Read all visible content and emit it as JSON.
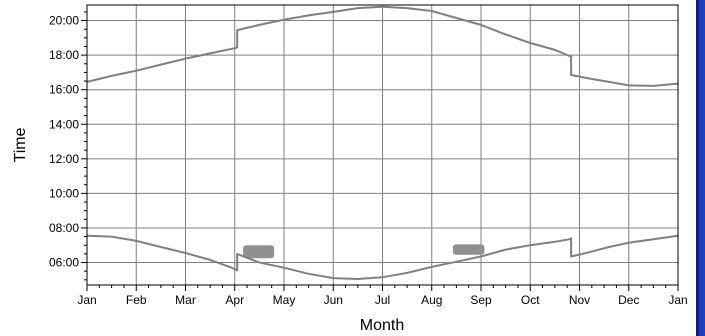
{
  "chart_data": {
    "type": "line",
    "xlabel": "Month",
    "ylabel": "Time",
    "x_tick_labels": [
      "Jan",
      "Feb",
      "Mar",
      "Apr",
      "May",
      "Jun",
      "Jul",
      "Aug",
      "Sep",
      "Oct",
      "Nov",
      "Dec",
      "Jan"
    ],
    "y_tick_labels": [
      "06:00",
      "08:00",
      "10:00",
      "12:00",
      "14:00",
      "16:00",
      "18:00",
      "20:00"
    ],
    "y_ticks_hours": [
      6,
      8,
      10,
      12,
      14,
      16,
      18,
      20
    ],
    "xlim_month": [
      0,
      12
    ],
    "ylim_hours": [
      4.7,
      20.9
    ],
    "grid": true,
    "line_color": "#808080",
    "series": [
      {
        "points": [
          [
            0.0,
            16.45
          ],
          [
            0.5,
            16.8
          ],
          [
            1.0,
            17.1
          ],
          [
            1.5,
            17.45
          ],
          [
            2.0,
            17.8
          ],
          [
            2.5,
            18.1
          ],
          [
            3.0,
            18.4
          ],
          [
            3.05,
            18.45
          ],
          [
            3.05,
            19.45
          ],
          [
            3.5,
            19.75
          ],
          [
            4.0,
            20.05
          ],
          [
            4.5,
            20.3
          ],
          [
            5.0,
            20.5
          ],
          [
            5.5,
            20.72
          ],
          [
            6.0,
            20.8
          ],
          [
            6.5,
            20.72
          ],
          [
            7.0,
            20.55
          ],
          [
            7.5,
            20.15
          ],
          [
            8.0,
            19.75
          ],
          [
            8.5,
            19.2
          ],
          [
            9.0,
            18.7
          ],
          [
            9.5,
            18.3
          ],
          [
            9.8,
            17.95
          ],
          [
            9.83,
            17.95
          ],
          [
            9.83,
            16.85
          ],
          [
            10.2,
            16.65
          ],
          [
            10.6,
            16.45
          ],
          [
            11.0,
            16.25
          ],
          [
            11.5,
            16.22
          ],
          [
            12.0,
            16.35
          ]
        ]
      },
      {
        "points": [
          [
            0.0,
            7.55
          ],
          [
            0.5,
            7.5
          ],
          [
            1.0,
            7.25
          ],
          [
            1.5,
            6.9
          ],
          [
            2.0,
            6.55
          ],
          [
            2.5,
            6.15
          ],
          [
            2.9,
            5.75
          ],
          [
            3.05,
            5.55
          ],
          [
            3.05,
            6.5
          ],
          [
            3.5,
            6.0
          ],
          [
            4.0,
            5.7
          ],
          [
            4.5,
            5.35
          ],
          [
            5.0,
            5.1
          ],
          [
            5.5,
            5.05
          ],
          [
            6.0,
            5.15
          ],
          [
            6.5,
            5.4
          ],
          [
            7.0,
            5.75
          ],
          [
            7.5,
            6.05
          ],
          [
            8.0,
            6.35
          ],
          [
            8.5,
            6.75
          ],
          [
            9.0,
            7.0
          ],
          [
            9.5,
            7.2
          ],
          [
            9.8,
            7.35
          ],
          [
            9.83,
            7.4
          ],
          [
            9.83,
            6.35
          ],
          [
            10.2,
            6.6
          ],
          [
            10.6,
            6.9
          ],
          [
            11.0,
            7.15
          ],
          [
            11.5,
            7.35
          ],
          [
            12.0,
            7.55
          ]
        ]
      }
    ],
    "annotations": [
      {
        "month_start": 3.17,
        "month_end": 3.8,
        "hour_low": 6.25,
        "hour_high": 7.0,
        "color": "#909090"
      },
      {
        "month_start": 7.43,
        "month_end": 8.07,
        "hour_low": 6.45,
        "hour_high": 7.05,
        "color": "#909090"
      }
    ]
  }
}
